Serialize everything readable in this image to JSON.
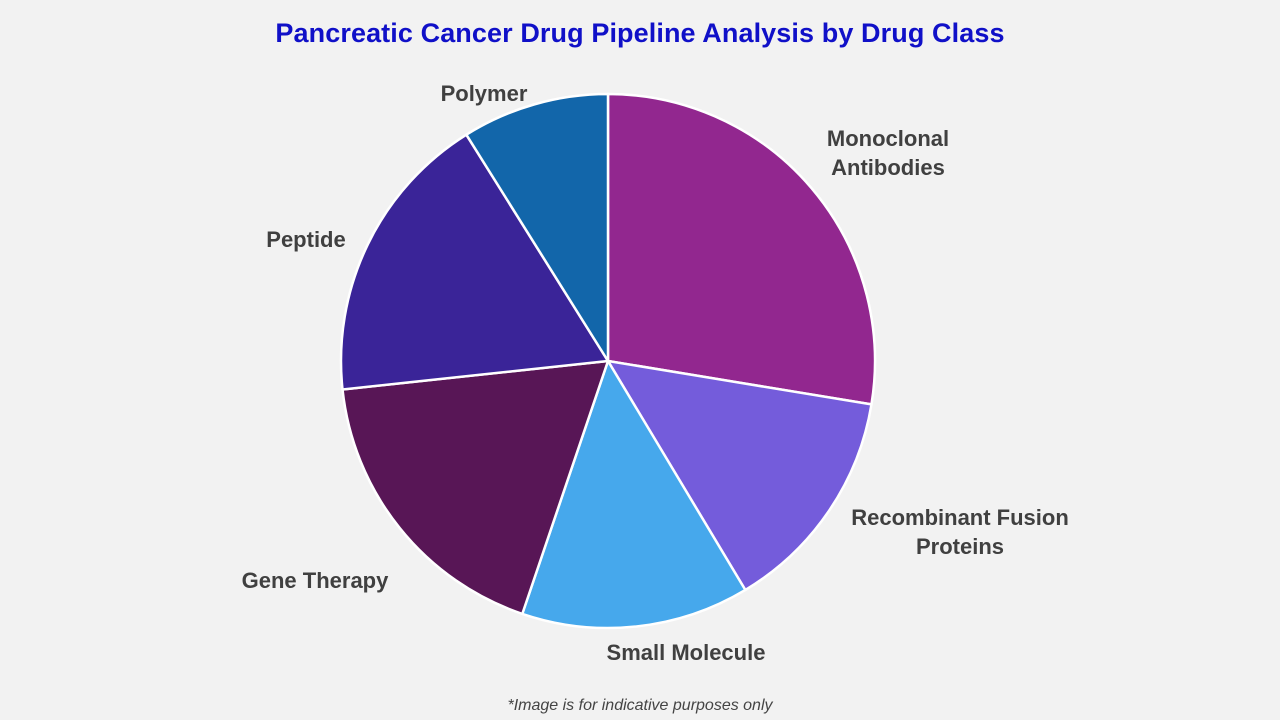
{
  "chart_data": {
    "type": "pie",
    "title": "Pancreatic Cancer Drug Pipeline Analysis by Drug Class",
    "categories": [
      "Monoclonal Antibodies",
      "Recombinant Fusion Proteins",
      "Small Molecule",
      "Gene Therapy",
      "Peptide",
      "Polymer"
    ],
    "label_lines": [
      [
        "Monoclonal",
        "Antibodies"
      ],
      [
        "Recombinant Fusion",
        "Proteins"
      ],
      [
        "Small Molecule"
      ],
      [
        "Gene Therapy"
      ],
      [
        "Peptide"
      ],
      [
        "Polymer"
      ]
    ],
    "values": [
      27.6,
      13.8,
      13.8,
      18.1,
      17.8,
      8.9
    ],
    "colors": [
      "#92278f",
      "#745cdb",
      "#46a8ec",
      "#581656",
      "#3a2498",
      "#1266aa"
    ],
    "start_angle_deg": 0,
    "direction": "clockwise",
    "legend": "none"
  },
  "footnote": "*Image is for indicative purposes only"
}
